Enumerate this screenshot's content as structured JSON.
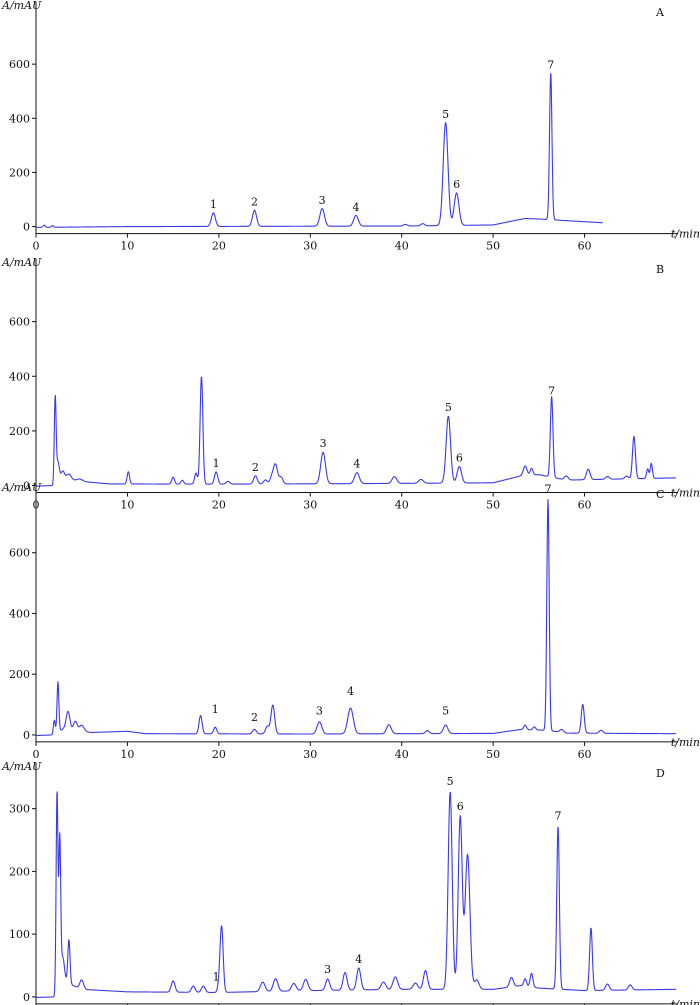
{
  "figure": {
    "line_color": "#3a3ae6",
    "axis_color": "#111111"
  },
  "chart_data": [
    {
      "type": "line",
      "panel": "A",
      "ylabel": "A/mAU",
      "xlabel": "t/min",
      "xlim": [
        0,
        70
      ],
      "ylim": [
        -20,
        800
      ],
      "xticks": [
        0,
        10,
        20,
        30,
        40,
        50,
        60
      ],
      "yticks": [
        0,
        200,
        400,
        600
      ],
      "trace_end": 62,
      "baseline": [
        [
          0,
          -3
        ],
        [
          10,
          0
        ],
        [
          25,
          1
        ],
        [
          40,
          2
        ],
        [
          50,
          6
        ],
        [
          52,
          20
        ],
        [
          53.5,
          30
        ],
        [
          55,
          28
        ],
        [
          62,
          14
        ]
      ],
      "peaks": [
        {
          "t": 0.9,
          "h": 8,
          "w": 0.12
        },
        {
          "t": 1.8,
          "h": 6,
          "w": 0.12
        },
        {
          "t": 19.4,
          "h": 50,
          "w": 0.22
        },
        {
          "t": 23.9,
          "h": 60,
          "w": 0.22
        },
        {
          "t": 31.3,
          "h": 65,
          "w": 0.25
        },
        {
          "t": 35.0,
          "h": 40,
          "w": 0.25
        },
        {
          "t": 40.4,
          "h": 6,
          "w": 0.2
        },
        {
          "t": 42.3,
          "h": 8,
          "w": 0.2
        },
        {
          "t": 44.8,
          "h": 380,
          "w": 0.26
        },
        {
          "t": 46.0,
          "h": 120,
          "w": 0.26
        },
        {
          "t": 56.3,
          "h": 545,
          "w": 0.13
        }
      ],
      "peak_labels": [
        {
          "label": "1",
          "t": 19.4,
          "y": 50
        },
        {
          "label": "2",
          "t": 23.9,
          "y": 60
        },
        {
          "label": "3",
          "t": 31.3,
          "y": 65
        },
        {
          "label": "4",
          "t": 35.0,
          "y": 40
        },
        {
          "label": "5",
          "t": 44.8,
          "y": 382
        },
        {
          "label": "6",
          "t": 46.0,
          "y": 124
        },
        {
          "label": "7",
          "t": 56.3,
          "y": 565
        }
      ]
    },
    {
      "type": "line",
      "panel": "B",
      "ylabel": "A/mAU",
      "xlabel": "t/min",
      "xlim": [
        0,
        70
      ],
      "ylim": [
        -20,
        800
      ],
      "xticks": [
        0,
        10,
        20,
        30,
        40,
        50,
        60
      ],
      "yticks": [
        0,
        200,
        400,
        600
      ],
      "trace_end": 70,
      "baseline": [
        [
          0,
          -2
        ],
        [
          2,
          0
        ],
        [
          3,
          25
        ],
        [
          5,
          15
        ],
        [
          8,
          6
        ],
        [
          20,
          5
        ],
        [
          35,
          7
        ],
        [
          50,
          10
        ],
        [
          53,
          35
        ],
        [
          55,
          40
        ],
        [
          58,
          20
        ],
        [
          70,
          28
        ]
      ],
      "peaks": [
        {
          "t": 2.1,
          "h": 320,
          "w": 0.1
        },
        {
          "t": 2.4,
          "h": 75,
          "w": 0.15
        },
        {
          "t": 2.9,
          "h": 30,
          "w": 0.2
        },
        {
          "t": 3.6,
          "h": 20,
          "w": 0.25
        },
        {
          "t": 4.8,
          "h": 8,
          "w": 0.3
        },
        {
          "t": 10.1,
          "h": 45,
          "w": 0.13
        },
        {
          "t": 15.0,
          "h": 25,
          "w": 0.15
        },
        {
          "t": 16.0,
          "h": 14,
          "w": 0.15
        },
        {
          "t": 17.5,
          "h": 40,
          "w": 0.15
        },
        {
          "t": 18.1,
          "h": 395,
          "w": 0.15
        },
        {
          "t": 19.7,
          "h": 45,
          "w": 0.18
        },
        {
          "t": 21.0,
          "h": 10,
          "w": 0.2
        },
        {
          "t": 24.0,
          "h": 30,
          "w": 0.2
        },
        {
          "t": 25.1,
          "h": 15,
          "w": 0.2
        },
        {
          "t": 25.8,
          "h": 25,
          "w": 0.2
        },
        {
          "t": 26.2,
          "h": 70,
          "w": 0.22
        },
        {
          "t": 26.8,
          "h": 25,
          "w": 0.2
        },
        {
          "t": 31.4,
          "h": 115,
          "w": 0.26
        },
        {
          "t": 35.1,
          "h": 40,
          "w": 0.26
        },
        {
          "t": 39.2,
          "h": 25,
          "w": 0.25
        },
        {
          "t": 42.1,
          "h": 14,
          "w": 0.25
        },
        {
          "t": 45.1,
          "h": 245,
          "w": 0.24
        },
        {
          "t": 46.3,
          "h": 60,
          "w": 0.24
        },
        {
          "t": 53.5,
          "h": 35,
          "w": 0.2
        },
        {
          "t": 54.2,
          "h": 25,
          "w": 0.15
        },
        {
          "t": 56.4,
          "h": 295,
          "w": 0.14
        },
        {
          "t": 58.0,
          "h": 15,
          "w": 0.2
        },
        {
          "t": 60.4,
          "h": 38,
          "w": 0.2
        },
        {
          "t": 62.5,
          "h": 10,
          "w": 0.2
        },
        {
          "t": 64.6,
          "h": 10,
          "w": 0.2
        },
        {
          "t": 65.4,
          "h": 155,
          "w": 0.16
        },
        {
          "t": 66.9,
          "h": 35,
          "w": 0.12
        },
        {
          "t": 67.3,
          "h": 55,
          "w": 0.12
        }
      ],
      "peak_labels": [
        {
          "label": "1",
          "t": 19.7,
          "y": 50
        },
        {
          "label": "2",
          "t": 24.0,
          "y": 35
        },
        {
          "label": "3",
          "t": 31.4,
          "y": 122
        },
        {
          "label": "4",
          "t": 35.1,
          "y": 47
        },
        {
          "label": "5",
          "t": 45.1,
          "y": 255
        },
        {
          "label": "6",
          "t": 46.3,
          "y": 70
        },
        {
          "label": "7",
          "t": 56.4,
          "y": 315
        }
      ]
    },
    {
      "type": "line",
      "panel": "C",
      "ylabel": "A/mAU",
      "xlabel": "t/min",
      "xlim": [
        0,
        70
      ],
      "ylim": [
        -20,
        800
      ],
      "xticks": [
        0,
        10,
        20,
        30,
        40,
        50,
        60
      ],
      "yticks": [
        0,
        200,
        400,
        600
      ],
      "trace_end": 70,
      "baseline": [
        [
          0,
          -2
        ],
        [
          1.8,
          0
        ],
        [
          3,
          20
        ],
        [
          6,
          8
        ],
        [
          10,
          12
        ],
        [
          12,
          4
        ],
        [
          30,
          3
        ],
        [
          50,
          5
        ],
        [
          53,
          18
        ],
        [
          56,
          15
        ],
        [
          58,
          6
        ],
        [
          70,
          4
        ]
      ],
      "peaks": [
        {
          "t": 2.0,
          "h": 45,
          "w": 0.1
        },
        {
          "t": 2.4,
          "h": 165,
          "w": 0.1
        },
        {
          "t": 3.5,
          "h": 60,
          "w": 0.2
        },
        {
          "t": 4.3,
          "h": 30,
          "w": 0.2
        },
        {
          "t": 5.0,
          "h": 20,
          "w": 0.25
        },
        {
          "t": 18.0,
          "h": 60,
          "w": 0.17
        },
        {
          "t": 19.6,
          "h": 22,
          "w": 0.17
        },
        {
          "t": 23.9,
          "h": 15,
          "w": 0.2
        },
        {
          "t": 25.3,
          "h": 25,
          "w": 0.2
        },
        {
          "t": 25.9,
          "h": 95,
          "w": 0.2
        },
        {
          "t": 31.0,
          "h": 40,
          "w": 0.26
        },
        {
          "t": 34.4,
          "h": 85,
          "w": 0.3
        },
        {
          "t": 38.6,
          "h": 30,
          "w": 0.25
        },
        {
          "t": 42.8,
          "h": 10,
          "w": 0.2
        },
        {
          "t": 44.8,
          "h": 28,
          "w": 0.24
        },
        {
          "t": 53.5,
          "h": 15,
          "w": 0.15
        },
        {
          "t": 54.5,
          "h": 10,
          "w": 0.15
        },
        {
          "t": 56.0,
          "h": 760,
          "w": 0.13
        },
        {
          "t": 57.5,
          "h": 10,
          "w": 0.2
        },
        {
          "t": 59.8,
          "h": 95,
          "w": 0.16
        },
        {
          "t": 61.8,
          "h": 10,
          "w": 0.2
        }
      ],
      "peak_labels": [
        {
          "label": "1",
          "t": 19.6,
          "y": 55
        },
        {
          "label": "2",
          "t": 23.9,
          "y": 30
        },
        {
          "label": "3",
          "t": 31.0,
          "y": 50
        },
        {
          "label": "4",
          "t": 34.4,
          "y": 115
        },
        {
          "label": "5",
          "t": 44.8,
          "y": 50
        },
        {
          "label": "7",
          "t": 56.0,
          "y": 782
        }
      ]
    },
    {
      "type": "line",
      "panel": "D",
      "ylabel": "A/mAU",
      "xlabel": "t/min",
      "xlim": [
        0,
        70
      ],
      "ylim": [
        -5,
        360
      ],
      "xticks": [
        0,
        10,
        20,
        30,
        40,
        50,
        60
      ],
      "yticks": [
        0,
        100,
        200,
        300
      ],
      "trace_end": 70,
      "baseline": [
        [
          0,
          -1
        ],
        [
          2,
          0
        ],
        [
          3,
          25
        ],
        [
          5,
          12
        ],
        [
          10,
          8
        ],
        [
          20,
          7
        ],
        [
          30,
          10
        ],
        [
          40,
          12
        ],
        [
          50,
          12
        ],
        [
          53,
          18
        ],
        [
          55,
          14
        ],
        [
          60,
          10
        ],
        [
          70,
          12
        ]
      ],
      "peaks": [
        {
          "t": 2.3,
          "h": 320,
          "w": 0.1
        },
        {
          "t": 2.6,
          "h": 230,
          "w": 0.1
        },
        {
          "t": 2.9,
          "h": 40,
          "w": 0.2
        },
        {
          "t": 3.6,
          "h": 70,
          "w": 0.12
        },
        {
          "t": 5.0,
          "h": 15,
          "w": 0.2
        },
        {
          "t": 15.0,
          "h": 18,
          "w": 0.2
        },
        {
          "t": 17.2,
          "h": 10,
          "w": 0.2
        },
        {
          "t": 18.3,
          "h": 10,
          "w": 0.2
        },
        {
          "t": 20.0,
          "h": 10,
          "w": 0.15
        },
        {
          "t": 20.3,
          "h": 105,
          "w": 0.17
        },
        {
          "t": 24.8,
          "h": 15,
          "w": 0.25
        },
        {
          "t": 26.2,
          "h": 20,
          "w": 0.25
        },
        {
          "t": 28.2,
          "h": 12,
          "w": 0.25
        },
        {
          "t": 29.5,
          "h": 18,
          "w": 0.25
        },
        {
          "t": 31.9,
          "h": 18,
          "w": 0.22
        },
        {
          "t": 33.8,
          "h": 28,
          "w": 0.22
        },
        {
          "t": 35.3,
          "h": 35,
          "w": 0.22
        },
        {
          "t": 38.0,
          "h": 12,
          "w": 0.25
        },
        {
          "t": 39.3,
          "h": 20,
          "w": 0.25
        },
        {
          "t": 41.5,
          "h": 10,
          "w": 0.25
        },
        {
          "t": 42.6,
          "h": 30,
          "w": 0.22
        },
        {
          "t": 45.3,
          "h": 315,
          "w": 0.22
        },
        {
          "t": 46.4,
          "h": 275,
          "w": 0.22
        },
        {
          "t": 47.2,
          "h": 215,
          "w": 0.26
        },
        {
          "t": 48.2,
          "h": 15,
          "w": 0.25
        },
        {
          "t": 52.0,
          "h": 15,
          "w": 0.2
        },
        {
          "t": 53.5,
          "h": 12,
          "w": 0.15
        },
        {
          "t": 54.2,
          "h": 22,
          "w": 0.15
        },
        {
          "t": 57.1,
          "h": 260,
          "w": 0.14
        },
        {
          "t": 60.7,
          "h": 100,
          "w": 0.15
        },
        {
          "t": 62.5,
          "h": 10,
          "w": 0.2
        },
        {
          "t": 65.0,
          "h": 8,
          "w": 0.2
        }
      ],
      "peak_labels": [
        {
          "label": "1",
          "t": 19.7,
          "y": 18
        },
        {
          "label": "3",
          "t": 31.9,
          "y": 30
        },
        {
          "label": "4",
          "t": 35.3,
          "y": 46
        },
        {
          "label": "5",
          "t": 45.3,
          "y": 330
        },
        {
          "label": "6",
          "t": 46.4,
          "y": 290
        },
        {
          "label": "7",
          "t": 57.1,
          "y": 275
        }
      ]
    }
  ]
}
